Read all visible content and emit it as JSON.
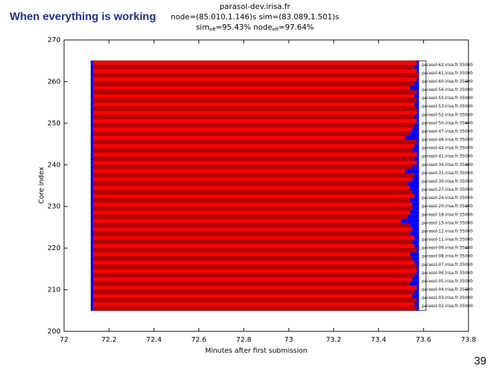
{
  "slide_title": "When everything is working",
  "page_number": "39",
  "chart_data": {
    "type": "gantt",
    "header": [
      "parasol-dev.irisa.fr",
      "node=(85.010,1.146)s sim=(83.089,1.501)s"
    ],
    "efficiency": [
      "sim",
      "eff",
      "=95.43% node",
      "eff",
      "=97.64%"
    ],
    "xlabel": "Minutes after first submission",
    "ylabel": "Core index",
    "xlim": [
      72,
      73.8
    ],
    "xticks": [
      72,
      72.2,
      72.4,
      72.6,
      72.8,
      73,
      73.2,
      73.4,
      73.6,
      73.8
    ],
    "ylim": [
      200,
      270
    ],
    "yticks": [
      200,
      210,
      220,
      230,
      240,
      250,
      260,
      270
    ],
    "cores": [
      205,
      206,
      207,
      208,
      209,
      210,
      211,
      212,
      213,
      214,
      215,
      216,
      217,
      218,
      219,
      220,
      221,
      222,
      223,
      224,
      225,
      226,
      227,
      228,
      229,
      230,
      231,
      232,
      233,
      234,
      235,
      236,
      237,
      238,
      239,
      240,
      241,
      242,
      243,
      244,
      245,
      246,
      247,
      248,
      249,
      250,
      251,
      252,
      253,
      254,
      255,
      256,
      257,
      258,
      259,
      260,
      261,
      262,
      263,
      264
    ],
    "start": 72.12,
    "setup_end": 72.13,
    "finish": 73.58,
    "compute_end": [
      73.57,
      73.56,
      73.57,
      73.55,
      73.56,
      73.57,
      73.54,
      73.55,
      73.56,
      73.57,
      73.57,
      73.56,
      73.55,
      73.54,
      73.57,
      73.56,
      73.55,
      73.56,
      73.54,
      73.55,
      73.54,
      73.5,
      73.53,
      73.54,
      73.55,
      73.55,
      73.54,
      73.56,
      73.55,
      73.54,
      73.53,
      73.55,
      73.56,
      73.52,
      73.55,
      73.57,
      73.56,
      73.57,
      73.55,
      73.56,
      73.57,
      73.52,
      73.54,
      73.55,
      73.56,
      73.57,
      73.56,
      73.57,
      73.57,
      73.56,
      73.57,
      73.56,
      73.57,
      73.54,
      73.56,
      73.57,
      73.58,
      73.57,
      73.56,
      73.57
    ],
    "colors": {
      "compute": [
        "#b40000",
        "#ff0000"
      ],
      "overhead": "#0000ff"
    },
    "hosts": [
      "parasol-62.irisa.fr:35000",
      "parasol-61.irisa.fr:35000",
      "parasol-60.irisa.fr:35000",
      "parasol-56.irisa.fr:35000",
      "parasol-55.irisa.fr:35000",
      "parasol-53.irisa.fr:35000",
      "parasol-52.irisa.fr:35000",
      "parasol-50.irisa.fr:35000",
      "parasol-47.irisa.fr:35000",
      "parasol-46.irisa.fr:35000",
      "parasol-44.irisa.fr:35000",
      "parasol-41.irisa.fr:35000",
      "parasol-34.irisa.fr:35000",
      "parasol-31.irisa.fr:35000",
      "parasol-30.irisa.fr:35000",
      "parasol-27.irisa.fr:35000",
      "parasol-24.irisa.fr:35000",
      "parasol-20.irisa.fr:35000",
      "parasol-18.irisa.fr:35000",
      "parasol-15.irisa.fr:35000",
      "parasol-12.irisa.fr:35000",
      "parasol-11.irisa.fr:35000",
      "parasol-09.irisa.fr:35000",
      "parasol-08.irisa.fr:35000",
      "parasol-07.irisa.fr:35000",
      "parasol-06.irisa.fr:35000",
      "parasol-05.irisa.fr:35000",
      "parasol-04.irisa.fr:35000",
      "parasol-03.irisa.fr:35000",
      "parasol-02.irisa.fr:35000"
    ]
  }
}
